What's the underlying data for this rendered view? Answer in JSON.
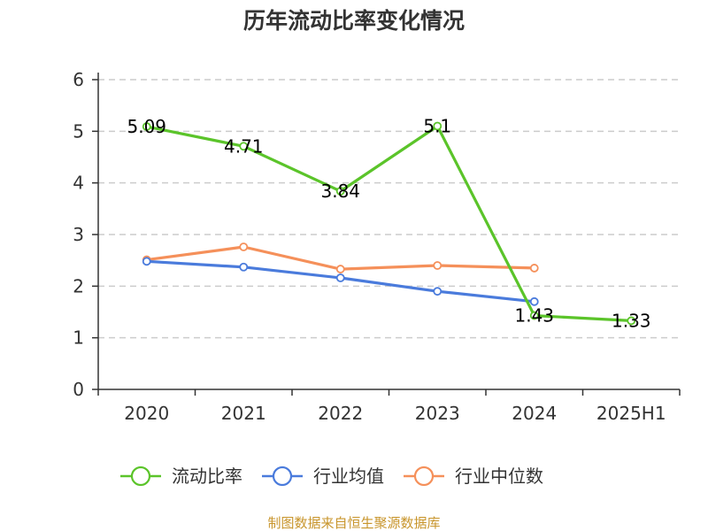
{
  "chart_data": {
    "type": "line",
    "title": "历年流动比率变化情况",
    "categories": [
      "2020",
      "2021",
      "2022",
      "2023",
      "2024",
      "2025H1"
    ],
    "ylim": [
      0,
      6
    ],
    "yticks": [
      "0",
      "1",
      "2",
      "3",
      "4",
      "5",
      "6"
    ],
    "grid": true,
    "legend_position": "bottom",
    "series": [
      {
        "name": "流动比率",
        "color": "#5bc42a",
        "values": [
          5.09,
          4.71,
          3.84,
          5.1,
          1.43,
          1.33
        ],
        "labels": [
          "5.09",
          "4.71",
          "3.84",
          "5.1",
          "1.43",
          "1.33"
        ]
      },
      {
        "name": "行业均值",
        "color": "#4a7bdc",
        "values": [
          2.48,
          2.37,
          2.16,
          1.9,
          1.7,
          null
        ]
      },
      {
        "name": "行业中位数",
        "color": "#f5905a",
        "values": [
          2.51,
          2.76,
          2.33,
          2.4,
          2.35,
          null
        ]
      }
    ],
    "source": "制图数据来自恒生聚源数据库"
  }
}
